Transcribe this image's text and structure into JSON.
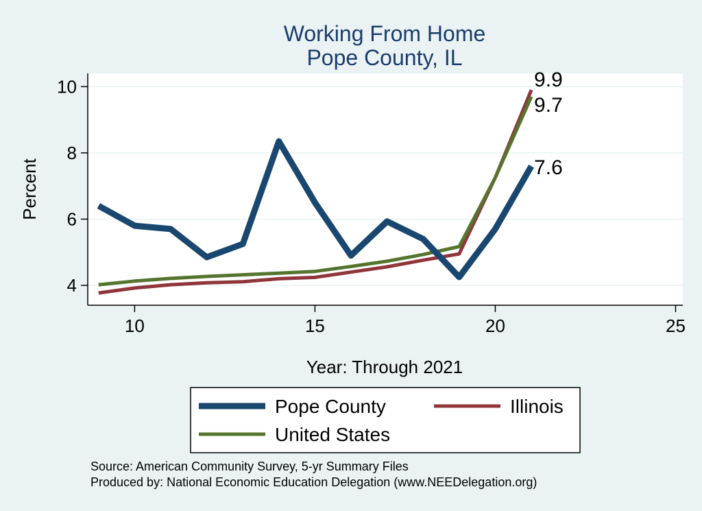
{
  "chart_data": {
    "type": "line",
    "title": [
      "Working From Home",
      "Pope County, IL"
    ],
    "xlabel": "Year: Through 2021",
    "ylabel": "Percent",
    "xlim": [
      8.7,
      25.2
    ],
    "ylim": [
      3.4,
      10.4
    ],
    "xticks": [
      10,
      15,
      20,
      25
    ],
    "yticks": [
      4,
      6,
      8,
      10
    ],
    "grid": true,
    "x": [
      9,
      10,
      11,
      12,
      13,
      14,
      15,
      16,
      17,
      18,
      19,
      20,
      21
    ],
    "series": [
      {
        "name": "Pope County",
        "color": "#1a476f",
        "width": 9,
        "values": [
          6.4,
          5.8,
          5.7,
          4.85,
          5.25,
          8.35,
          6.5,
          4.9,
          5.93,
          5.4,
          4.25,
          5.7,
          7.6
        ],
        "end_label": "7.6"
      },
      {
        "name": "Illinois",
        "color": "#90353b",
        "width": 5,
        "values": [
          3.77,
          3.92,
          4.02,
          4.08,
          4.11,
          4.2,
          4.24,
          4.4,
          4.56,
          4.76,
          4.95,
          7.25,
          9.9
        ],
        "end_label": "9.9"
      },
      {
        "name": "United States",
        "color": "#55752f",
        "width": 5,
        "values": [
          4.02,
          4.13,
          4.21,
          4.27,
          4.32,
          4.37,
          4.42,
          4.57,
          4.73,
          4.93,
          5.17,
          7.25,
          9.7
        ],
        "end_label": "9.7"
      }
    ],
    "legend": {
      "placement": "bottom",
      "order": [
        "Pope County",
        "Illinois",
        "United States"
      ]
    },
    "notes": [
      "Source: American Community Survey, 5-yr Summary Files",
      "Produced by: National Economic Education Delegation (www.NEEDelegation.org)"
    ]
  }
}
